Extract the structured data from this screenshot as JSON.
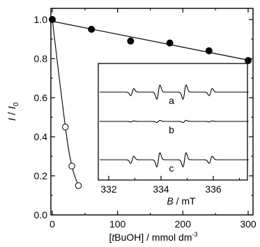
{
  "chart_data": [
    {
      "type": "scatter",
      "ylabel": "I / I0",
      "ylabel_parts": {
        "main": "I",
        "sep": " / ",
        "base": "I",
        "sub": "0"
      },
      "xlabel": "[tBuOH] / mmol dm-3",
      "xlabel_parts": {
        "open": "[",
        "italic": "t",
        "rest": "BuOH] / mmol dm",
        "sup": "-3"
      },
      "xlim": [
        0,
        300
      ],
      "ylim": [
        0,
        1.0
      ],
      "x_ticks": [
        "0",
        "100",
        "200",
        "300"
      ],
      "y_ticks": [
        "0.0",
        "0.2",
        "0.4",
        "0.6",
        "0.8",
        "1.0"
      ],
      "grid": false,
      "series": [
        {
          "marker": "filled-circle",
          "line": "linear fit",
          "x": [
            0,
            60,
            120,
            180,
            240,
            300
          ],
          "y": [
            1.0,
            0.95,
            0.89,
            0.88,
            0.84,
            0.79
          ]
        },
        {
          "marker": "open-circle",
          "line": "smooth curve",
          "x": [
            0,
            20,
            30,
            40
          ],
          "y": [
            1.0,
            0.45,
            0.25,
            0.15
          ]
        }
      ],
      "colors": {
        "line": "#000000",
        "open_marker_fill": "#ffffff"
      }
    },
    {
      "type": "line",
      "role": "inset ESR spectra",
      "xlabel": "B / mT",
      "xlabel_parts": {
        "italic": "B",
        "rest": " / mT"
      },
      "xlim": [
        331.3,
        337.6
      ],
      "x_ticks": [
        "332",
        "334",
        "336"
      ],
      "x_tick_values": [
        332,
        334,
        336
      ],
      "spectra": [
        {
          "label": "a",
          "lines_mT": [
            332.9,
            333.9,
            334.9,
            335.9
          ],
          "heights": [
            1,
            2,
            2,
            1
          ],
          "intensity": 1.0
        },
        {
          "label": "b",
          "lines_mT": [
            332.9,
            333.9,
            334.9,
            335.9
          ],
          "heights": [
            1,
            2,
            2,
            1
          ],
          "intensity": 0.15
        },
        {
          "label": "c",
          "lines_mT": [
            332.9,
            333.9,
            334.9,
            335.9
          ],
          "heights": [
            1,
            2,
            2,
            1
          ],
          "intensity": 1.0
        }
      ]
    }
  ]
}
